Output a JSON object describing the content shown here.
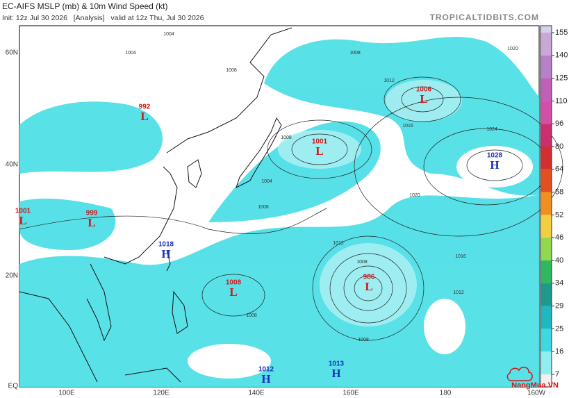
{
  "header": {
    "title": "EC-AIFS MSLP (mb) & 10m Wind Speed (kt)",
    "init": "Init: 12z Jul 30 2026   [Analysis]   valid at 12z Thu, Jul 30 2026",
    "site": "TROPICALTIDBITS.COM"
  },
  "axes": {
    "lat": [
      "60N",
      "40N",
      "20N",
      "EQ"
    ],
    "lon": [
      "100E",
      "120E",
      "140E",
      "160E",
      "180",
      "160W"
    ]
  },
  "colorbar": {
    "ticks": [
      155,
      140,
      125,
      110,
      96,
      80,
      64,
      58,
      52,
      46,
      40,
      34,
      29,
      25,
      16,
      7
    ],
    "colors": [
      "#d8d0e8",
      "#c9a8d8",
      "#b880c8",
      "#c060b8",
      "#d050a8",
      "#c83070",
      "#d03030",
      "#e05020",
      "#f09020",
      "#f0d040",
      "#90d850",
      "#30b860",
      "#20988c",
      "#20b8c0",
      "#40d8e0",
      "#90eef0",
      "#f0f0f0"
    ]
  },
  "centers": [
    {
      "value": "992",
      "letter": "L",
      "color": "#d01818"
    },
    {
      "value": "1001",
      "letter": "L",
      "color": "#d01818"
    },
    {
      "value": "1006",
      "letter": "L",
      "color": "#d01818"
    },
    {
      "value": "1028",
      "letter": "H",
      "color": "#1830c0"
    },
    {
      "value": "1001",
      "letter": "L",
      "color": "#d01818"
    },
    {
      "value": "999",
      "letter": "L",
      "color": "#d01818"
    },
    {
      "value": "1018",
      "letter": "H",
      "color": "#1830c0"
    },
    {
      "value": "1008",
      "letter": "L",
      "color": "#d01818"
    },
    {
      "value": "986",
      "letter": "L",
      "color": "#d01818"
    },
    {
      "value": "1012",
      "letter": "H",
      "color": "#1830c0"
    },
    {
      "value": "1013",
      "letter": "H",
      "color": "#1830c0"
    }
  ],
  "contour_labels": [
    "1004",
    "1008",
    "1004",
    "1008",
    "1012",
    "1016",
    "1024",
    "1020",
    "1020",
    "1016",
    "1012",
    "1012",
    "1008",
    "1008",
    "1004",
    "1008",
    "1008",
    "1008"
  ],
  "watermark": "NangMua.VN"
}
